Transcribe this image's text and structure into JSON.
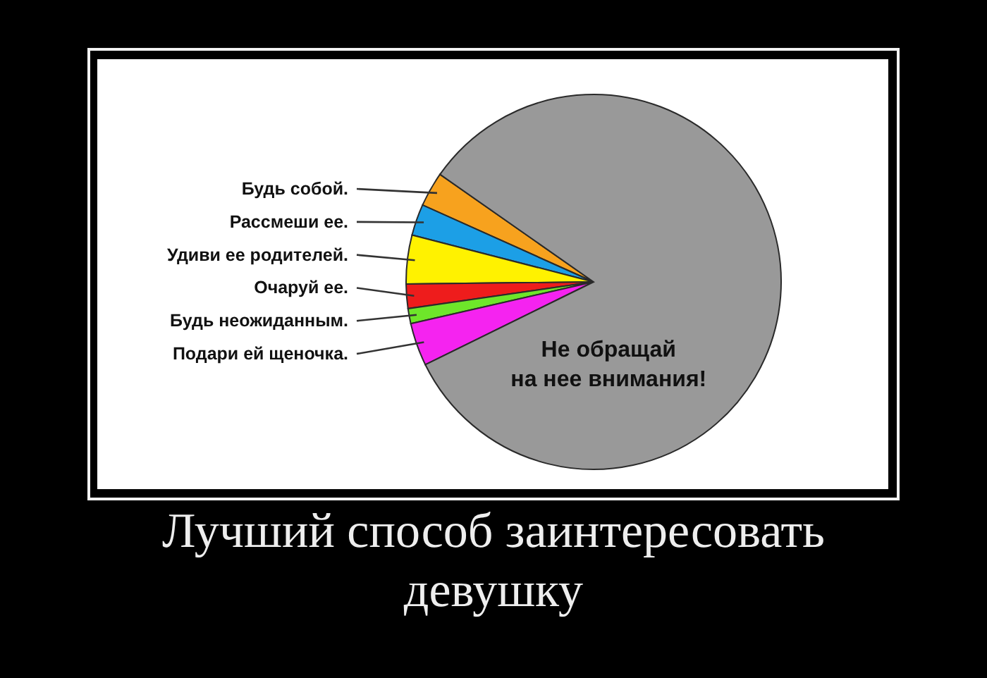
{
  "chart_data": {
    "type": "pie",
    "title": "Лучший способ заинтересовать девушку",
    "categories": [
      "Будь собой.",
      "Рассмеши ее.",
      "Удиви ее родителей.",
      "Очаруй ее.",
      "Будь неожиданным.",
      "Подари ей щеночка.",
      "Не обращай\nна нее внимания!"
    ],
    "values": [
      3.0,
      2.7,
      4.2,
      2.1,
      1.3,
      3.7,
      83.0
    ],
    "colors": [
      "#f7a21e",
      "#1c9fe6",
      "#fff200",
      "#ee1c1c",
      "#6ee62a",
      "#f523f0",
      "#999999"
    ]
  }
}
